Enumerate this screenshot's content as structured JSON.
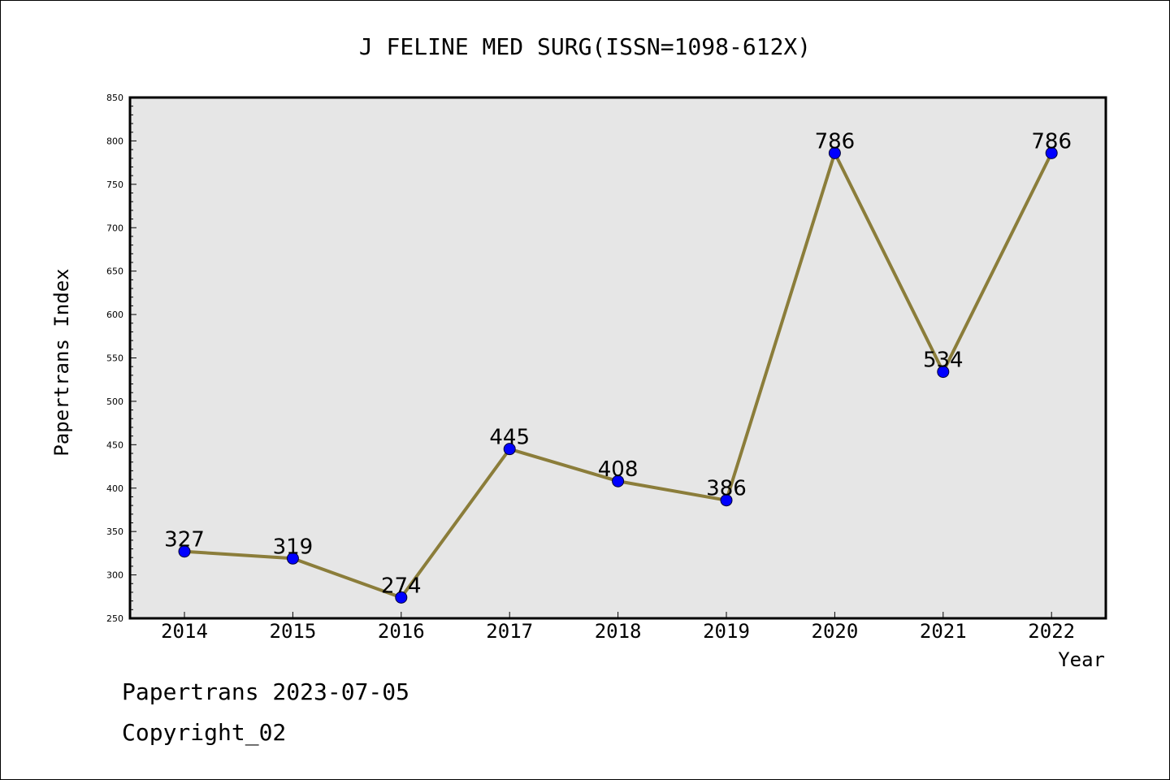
{
  "chart_data": {
    "type": "line",
    "title": "J FELINE MED SURG(ISSN=1098-612X)",
    "xlabel": "Year",
    "ylabel": "Papertrans Index",
    "categories": [
      "2014",
      "2015",
      "2016",
      "2017",
      "2018",
      "2019",
      "2020",
      "2021",
      "2022"
    ],
    "series": [
      {
        "values": [
          327,
          319,
          274,
          445,
          408,
          386,
          786,
          534,
          786
        ],
        "labels": [
          "327",
          "319",
          "274",
          "445",
          "408",
          "386",
          "786",
          "534",
          "786"
        ]
      }
    ],
    "ylim": [
      250,
      850
    ],
    "yticks": [
      "250",
      "300",
      "350",
      "400",
      "450",
      "500",
      "550",
      "600",
      "650",
      "700",
      "750",
      "800",
      "850"
    ],
    "grid": false,
    "colors": {
      "line": "#8B7D3A",
      "marker": "#0000FF",
      "plot_background": "#E6E6E6"
    }
  },
  "footer": {
    "line1": "Papertrans 2023-07-05",
    "line2": "Copyright_02"
  }
}
